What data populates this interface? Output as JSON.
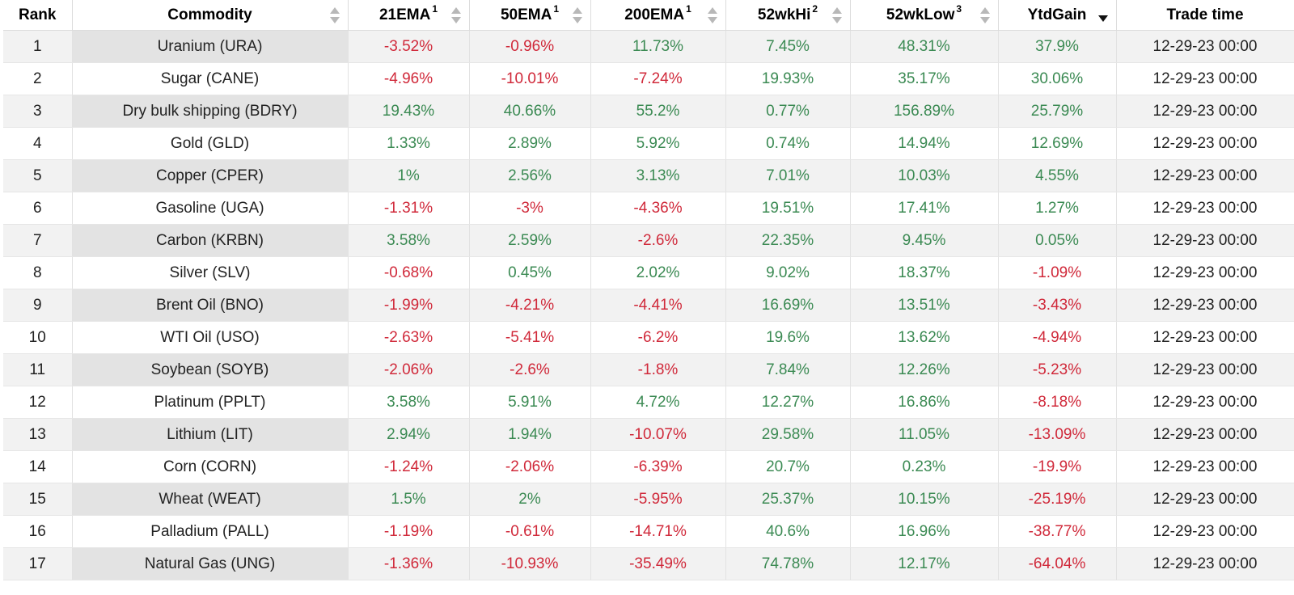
{
  "colors": {
    "positive": "#3b8a53",
    "negative": "#d0293a",
    "row_stripe": "#f2f2f2",
    "commodity_stripe": "#e3e3e3"
  },
  "headers": [
    {
      "key": "rank",
      "label": "Rank",
      "sup": "",
      "sortable": false
    },
    {
      "key": "commodity",
      "label": "Commodity",
      "sup": "",
      "sortable": true
    },
    {
      "key": "ema21",
      "label": "21EMA",
      "sup": "1",
      "sortable": true
    },
    {
      "key": "ema50",
      "label": "50EMA",
      "sup": "1",
      "sortable": true
    },
    {
      "key": "ema200",
      "label": "200EMA",
      "sup": "1",
      "sortable": true
    },
    {
      "key": "hi52",
      "label": "52wkHi",
      "sup": "2",
      "sortable": true
    },
    {
      "key": "low52",
      "label": "52wkLow",
      "sup": "3",
      "sortable": true
    },
    {
      "key": "ytd",
      "label": "YtdGain",
      "sup": "",
      "sortable": true,
      "sort_state": "descending"
    },
    {
      "key": "time",
      "label": "Trade time",
      "sup": "",
      "sortable": false
    }
  ],
  "rows": [
    {
      "rank": "1",
      "commodity": "Uranium (URA)",
      "ema21": "-3.52%",
      "ema50": "-0.96%",
      "ema200": "11.73%",
      "hi52": "7.45%",
      "low52": "48.31%",
      "ytd": "37.9%",
      "time": "12-29-23 00:00"
    },
    {
      "rank": "2",
      "commodity": "Sugar (CANE)",
      "ema21": "-4.96%",
      "ema50": "-10.01%",
      "ema200": "-7.24%",
      "hi52": "19.93%",
      "low52": "35.17%",
      "ytd": "30.06%",
      "time": "12-29-23 00:00"
    },
    {
      "rank": "3",
      "commodity": "Dry bulk shipping (BDRY)",
      "ema21": "19.43%",
      "ema50": "40.66%",
      "ema200": "55.2%",
      "hi52": "0.77%",
      "low52": "156.89%",
      "ytd": "25.79%",
      "time": "12-29-23 00:00"
    },
    {
      "rank": "4",
      "commodity": "Gold (GLD)",
      "ema21": "1.33%",
      "ema50": "2.89%",
      "ema200": "5.92%",
      "hi52": "0.74%",
      "low52": "14.94%",
      "ytd": "12.69%",
      "time": "12-29-23 00:00"
    },
    {
      "rank": "5",
      "commodity": "Copper (CPER)",
      "ema21": "1%",
      "ema50": "2.56%",
      "ema200": "3.13%",
      "hi52": "7.01%",
      "low52": "10.03%",
      "ytd": "4.55%",
      "time": "12-29-23 00:00"
    },
    {
      "rank": "6",
      "commodity": "Gasoline (UGA)",
      "ema21": "-1.31%",
      "ema50": "-3%",
      "ema200": "-4.36%",
      "hi52": "19.51%",
      "low52": "17.41%",
      "ytd": "1.27%",
      "time": "12-29-23 00:00"
    },
    {
      "rank": "7",
      "commodity": "Carbon (KRBN)",
      "ema21": "3.58%",
      "ema50": "2.59%",
      "ema200": "-2.6%",
      "hi52": "22.35%",
      "low52": "9.45%",
      "ytd": "0.05%",
      "time": "12-29-23 00:00"
    },
    {
      "rank": "8",
      "commodity": "Silver (SLV)",
      "ema21": "-0.68%",
      "ema50": "0.45%",
      "ema200": "2.02%",
      "hi52": "9.02%",
      "low52": "18.37%",
      "ytd": "-1.09%",
      "time": "12-29-23 00:00"
    },
    {
      "rank": "9",
      "commodity": "Brent Oil (BNO)",
      "ema21": "-1.99%",
      "ema50": "-4.21%",
      "ema200": "-4.41%",
      "hi52": "16.69%",
      "low52": "13.51%",
      "ytd": "-3.43%",
      "time": "12-29-23 00:00"
    },
    {
      "rank": "10",
      "commodity": "WTI Oil (USO)",
      "ema21": "-2.63%",
      "ema50": "-5.41%",
      "ema200": "-6.2%",
      "hi52": "19.6%",
      "low52": "13.62%",
      "ytd": "-4.94%",
      "time": "12-29-23 00:00"
    },
    {
      "rank": "11",
      "commodity": "Soybean (SOYB)",
      "ema21": "-2.06%",
      "ema50": "-2.6%",
      "ema200": "-1.8%",
      "hi52": "7.84%",
      "low52": "12.26%",
      "ytd": "-5.23%",
      "time": "12-29-23 00:00"
    },
    {
      "rank": "12",
      "commodity": "Platinum (PPLT)",
      "ema21": "3.58%",
      "ema50": "5.91%",
      "ema200": "4.72%",
      "hi52": "12.27%",
      "low52": "16.86%",
      "ytd": "-8.18%",
      "time": "12-29-23 00:00"
    },
    {
      "rank": "13",
      "commodity": "Lithium (LIT)",
      "ema21": "2.94%",
      "ema50": "1.94%",
      "ema200": "-10.07%",
      "hi52": "29.58%",
      "low52": "11.05%",
      "ytd": "-13.09%",
      "time": "12-29-23 00:00"
    },
    {
      "rank": "14",
      "commodity": "Corn (CORN)",
      "ema21": "-1.24%",
      "ema50": "-2.06%",
      "ema200": "-6.39%",
      "hi52": "20.7%",
      "low52": "0.23%",
      "ytd": "-19.9%",
      "time": "12-29-23 00:00"
    },
    {
      "rank": "15",
      "commodity": "Wheat (WEAT)",
      "ema21": "1.5%",
      "ema50": "2%",
      "ema200": "-5.95%",
      "hi52": "25.37%",
      "low52": "10.15%",
      "ytd": "-25.19%",
      "time": "12-29-23 00:00"
    },
    {
      "rank": "16",
      "commodity": "Palladium (PALL)",
      "ema21": "-1.19%",
      "ema50": "-0.61%",
      "ema200": "-14.71%",
      "hi52": "40.6%",
      "low52": "16.96%",
      "ytd": "-38.77%",
      "time": "12-29-23 00:00"
    },
    {
      "rank": "17",
      "commodity": "Natural Gas (UNG)",
      "ema21": "-1.36%",
      "ema50": "-10.93%",
      "ema200": "-35.49%",
      "hi52": "74.78%",
      "low52": "12.17%",
      "ytd": "-64.04%",
      "time": "12-29-23 00:00"
    }
  ]
}
